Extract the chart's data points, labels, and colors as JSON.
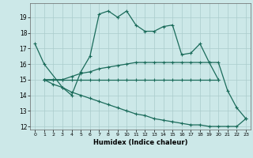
{
  "xlabel": "Humidex (Indice chaleur)",
  "background_color": "#cce8e8",
  "grid_color": "#aacccc",
  "line_color": "#1a6b5a",
  "xlim": [
    -0.5,
    23.5
  ],
  "ylim": [
    11.8,
    19.9
  ],
  "yticks": [
    12,
    13,
    14,
    15,
    16,
    17,
    18,
    19
  ],
  "xticks": [
    0,
    1,
    2,
    3,
    4,
    5,
    6,
    7,
    8,
    9,
    10,
    11,
    12,
    13,
    14,
    15,
    16,
    17,
    18,
    19,
    20,
    21,
    22,
    23
  ],
  "line1_x": [
    0,
    1,
    3,
    4,
    5,
    6,
    7,
    8,
    9,
    10,
    11,
    12,
    13,
    14,
    15,
    16,
    17,
    18,
    19,
    20,
    21,
    22,
    23
  ],
  "line1_y": [
    17.3,
    16.0,
    14.5,
    14.0,
    15.5,
    16.5,
    19.2,
    19.4,
    19.0,
    19.4,
    18.5,
    18.1,
    18.1,
    18.4,
    18.5,
    16.6,
    16.7,
    17.3,
    16.1,
    16.1,
    14.3,
    13.2,
    12.5
  ],
  "line2_x": [
    1,
    2,
    3,
    4,
    5,
    6,
    7,
    8,
    9,
    10,
    11,
    12,
    13,
    14,
    15,
    16,
    17,
    18,
    19,
    20
  ],
  "line2_y": [
    15.0,
    15.0,
    15.0,
    15.0,
    15.0,
    15.0,
    15.0,
    15.0,
    15.0,
    15.0,
    15.0,
    15.0,
    15.0,
    15.0,
    15.0,
    15.0,
    15.0,
    15.0,
    15.0,
    15.0
  ],
  "line3_x": [
    1,
    2,
    3,
    4,
    5,
    6,
    7,
    8,
    9,
    10,
    11,
    12,
    13,
    14,
    15,
    16,
    17,
    18,
    19,
    20
  ],
  "line3_y": [
    15.0,
    15.0,
    15.0,
    15.2,
    15.4,
    15.5,
    15.7,
    15.8,
    15.9,
    16.0,
    16.1,
    16.1,
    16.1,
    16.1,
    16.1,
    16.1,
    16.1,
    16.1,
    16.1,
    15.0
  ],
  "line4_x": [
    1,
    2,
    3,
    4,
    5,
    6,
    7,
    8,
    9,
    10,
    11,
    12,
    13,
    14,
    15,
    16,
    17,
    18,
    19,
    20,
    21,
    22,
    23
  ],
  "line4_y": [
    15.0,
    14.7,
    14.5,
    14.2,
    14.0,
    13.8,
    13.6,
    13.4,
    13.2,
    13.0,
    12.8,
    12.7,
    12.5,
    12.4,
    12.3,
    12.2,
    12.1,
    12.1,
    12.0,
    12.0,
    12.0,
    12.0,
    12.5
  ]
}
